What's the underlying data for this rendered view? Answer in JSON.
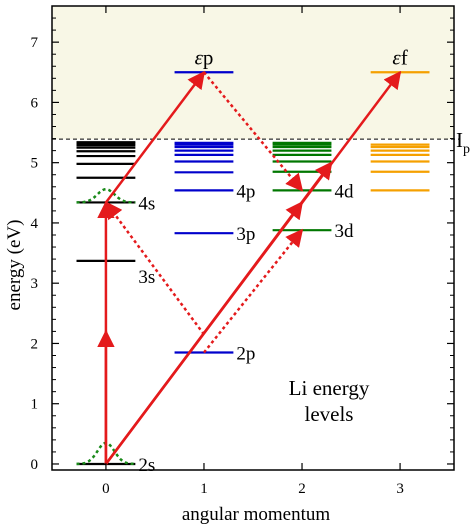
{
  "chart_data": {
    "type": "diagram",
    "xlabel": "angular momentum",
    "ylabel": "energy (eV)",
    "xticks": [
      "0",
      "1",
      "2",
      "3"
    ],
    "yticks": [
      "0",
      "1",
      "2",
      "3",
      "4",
      "5",
      "6",
      "7"
    ],
    "xlim": [
      -0.55,
      3.55
    ],
    "ylim": [
      -0.1,
      7.6
    ],
    "ionization": {
      "energy": 5.39,
      "label_main": "I",
      "label_sub": "p"
    },
    "continuum": {
      "min": 5.39,
      "max": 7.6,
      "color": "#f8f7e6"
    },
    "note": [
      "Li energy",
      "levels"
    ],
    "colors": {
      "s": "#000000",
      "p": "#0000cc",
      "d": "#007700",
      "f": "#f5a000",
      "arrow": "#e41a1c",
      "wavepacket": "#1a8a1a"
    },
    "levels": [
      {
        "l": 0,
        "energy": 0.0,
        "label": "2s"
      },
      {
        "l": 0,
        "energy": 3.37,
        "label": "3s"
      },
      {
        "l": 0,
        "energy": 4.34,
        "label": "4s"
      },
      {
        "l": 0,
        "energy": 4.75,
        "label": ""
      },
      {
        "l": 0,
        "energy": 4.98,
        "label": ""
      },
      {
        "l": 0,
        "energy": 5.11,
        "label": ""
      },
      {
        "l": 0,
        "energy": 5.19,
        "label": ""
      },
      {
        "l": 0,
        "energy": 5.25,
        "label": ""
      },
      {
        "l": 0,
        "energy": 5.29,
        "label": ""
      },
      {
        "l": 0,
        "energy": 5.32,
        "label": ""
      },
      {
        "l": 0,
        "energy": 5.34,
        "label": ""
      },
      {
        "l": 1,
        "energy": 1.85,
        "label": "2p"
      },
      {
        "l": 1,
        "energy": 3.83,
        "label": "3p"
      },
      {
        "l": 1,
        "energy": 4.54,
        "label": "4p"
      },
      {
        "l": 1,
        "energy": 4.84,
        "label": ""
      },
      {
        "l": 1,
        "energy": 5.02,
        "label": ""
      },
      {
        "l": 1,
        "energy": 5.13,
        "label": ""
      },
      {
        "l": 1,
        "energy": 5.2,
        "label": ""
      },
      {
        "l": 1,
        "energy": 5.26,
        "label": ""
      },
      {
        "l": 1,
        "energy": 5.3,
        "label": ""
      },
      {
        "l": 1,
        "energy": 5.33,
        "label": ""
      },
      {
        "l": 2,
        "energy": 3.88,
        "label": "3d"
      },
      {
        "l": 2,
        "energy": 4.54,
        "label": "4d"
      },
      {
        "l": 2,
        "energy": 4.85,
        "label": ""
      },
      {
        "l": 2,
        "energy": 5.02,
        "label": ""
      },
      {
        "l": 2,
        "energy": 5.13,
        "label": ""
      },
      {
        "l": 2,
        "energy": 5.2,
        "label": ""
      },
      {
        "l": 2,
        "energy": 5.26,
        "label": ""
      },
      {
        "l": 2,
        "energy": 5.3,
        "label": ""
      },
      {
        "l": 2,
        "energy": 5.33,
        "label": ""
      },
      {
        "l": 3,
        "energy": 4.54,
        "label": ""
      },
      {
        "l": 3,
        "energy": 4.85,
        "label": ""
      },
      {
        "l": 3,
        "energy": 5.02,
        "label": ""
      },
      {
        "l": 3,
        "energy": 5.13,
        "label": ""
      },
      {
        "l": 3,
        "energy": 5.2,
        "label": ""
      },
      {
        "l": 3,
        "energy": 5.26,
        "label": ""
      },
      {
        "l": 3,
        "energy": 5.3,
        "label": ""
      }
    ],
    "continuum_levels": [
      {
        "l": 1,
        "energy": 6.5,
        "label_greek": "ε",
        "label_letter": "p"
      },
      {
        "l": 3,
        "energy": 6.5,
        "label_greek": "ε",
        "label_letter": "f"
      }
    ],
    "transitions": [
      {
        "from": [
          0,
          0.0
        ],
        "to": [
          0,
          2.2
        ],
        "style": "solid"
      },
      {
        "from": [
          0,
          0.0
        ],
        "to": [
          0,
          4.34
        ],
        "style": "solid"
      },
      {
        "from": [
          0,
          4.34
        ],
        "to": [
          1,
          6.5
        ],
        "style": "solid"
      },
      {
        "from": [
          0,
          0.0
        ],
        "to": [
          3,
          6.5
        ],
        "style": "solid"
      },
      {
        "from": [
          0,
          0.0
        ],
        "to": [
          2,
          4.34
        ],
        "style": "solid"
      },
      {
        "from": [
          0,
          0.0
        ],
        "to": [
          2.3,
          5.0
        ],
        "style": "solid"
      },
      {
        "from": [
          1,
          2.15
        ],
        "to": [
          0,
          4.34
        ],
        "style": "dotted"
      },
      {
        "from": [
          1,
          6.5
        ],
        "to": [
          2,
          4.54
        ],
        "style": "dotted"
      },
      {
        "from": [
          1,
          1.85
        ],
        "to": [
          2,
          3.88
        ],
        "style": "dotted"
      }
    ],
    "wavepackets": [
      {
        "l": 0,
        "energy": 0.0,
        "height": 0.35
      },
      {
        "l": 0,
        "energy": 4.34,
        "height": 0.22
      }
    ]
  }
}
